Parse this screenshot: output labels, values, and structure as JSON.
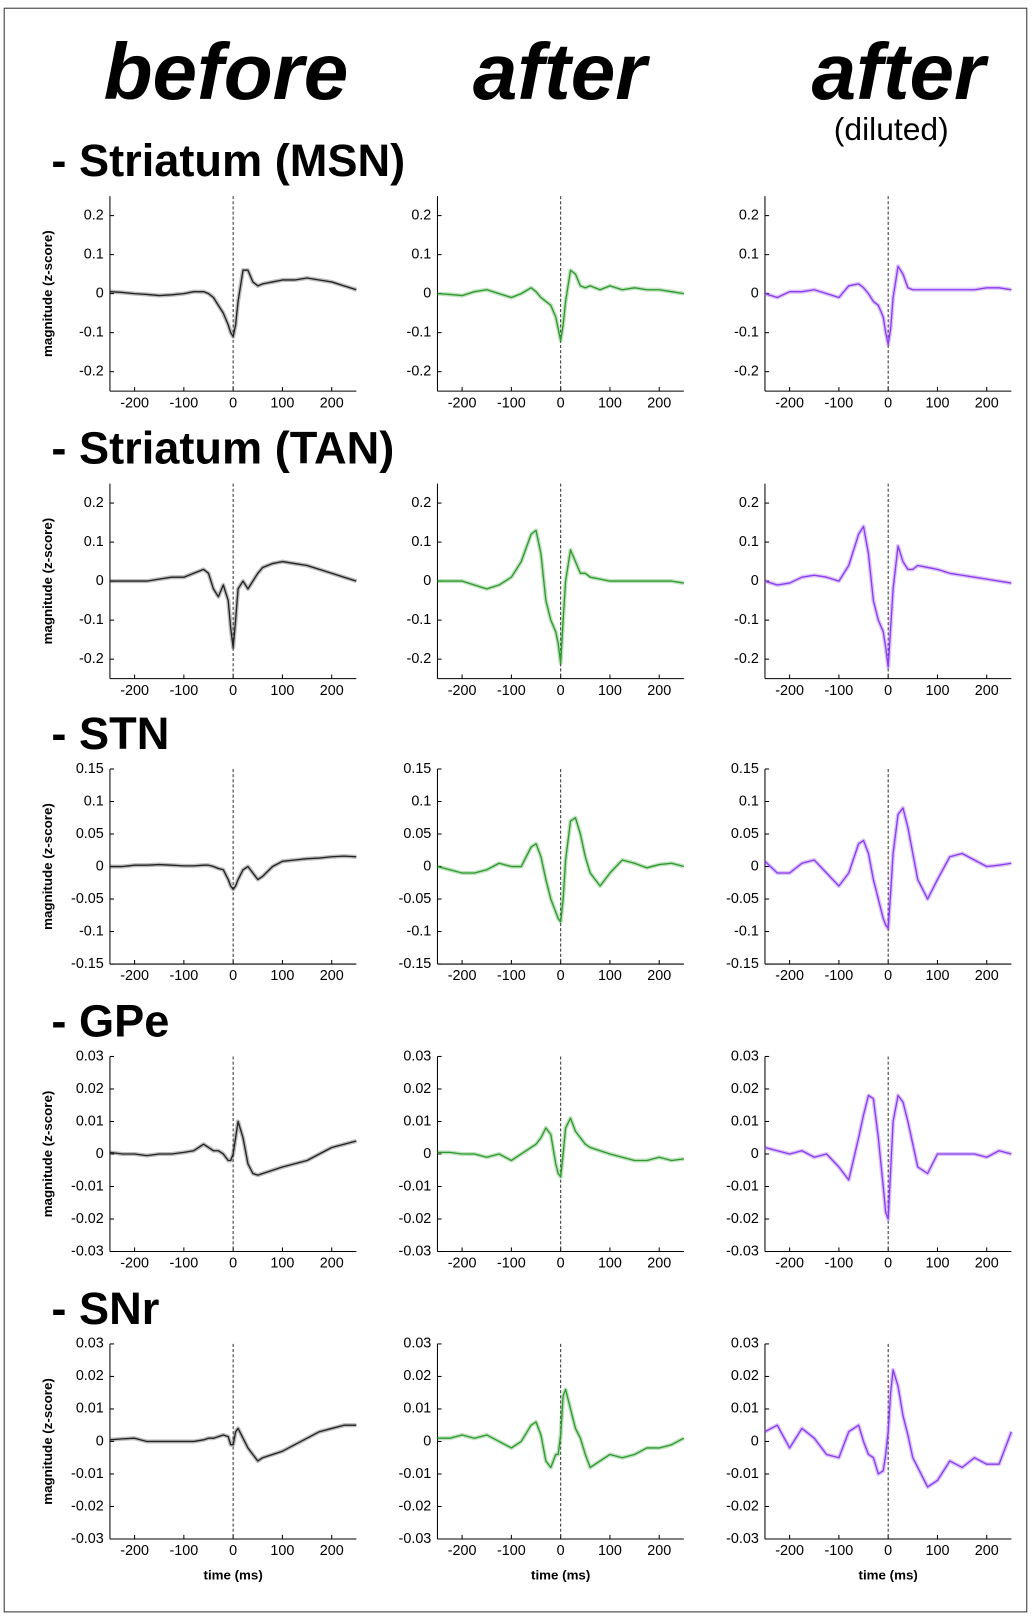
{
  "column_titles": [
    "before",
    "after",
    "after"
  ],
  "column_subtitle": "(diluted)",
  "row_titles": [
    "- Striatum (MSN)",
    "- Striatum (TAN)",
    "- STN",
    "- GPe",
    "- SNr"
  ],
  "chart_data": [
    {
      "type": "line",
      "ylabel": "magnitude (z-score)",
      "color": "#222222",
      "x": [
        -250,
        -225,
        -200,
        -175,
        -150,
        -125,
        -100,
        -80,
        -60,
        -50,
        -40,
        -30,
        -20,
        -10,
        -5,
        0,
        5,
        10,
        20,
        30,
        40,
        50,
        60,
        80,
        100,
        125,
        150,
        175,
        200,
        225,
        250
      ],
      "values": [
        0.005,
        0.003,
        0,
        -0.002,
        -0.005,
        -0.003,
        0,
        0.005,
        0.005,
        0,
        -0.01,
        -0.03,
        -0.05,
        -0.08,
        -0.1,
        -0.11,
        -0.08,
        -0.02,
        0.06,
        0.06,
        0.03,
        0.02,
        0.025,
        0.03,
        0.035,
        0.035,
        0.04,
        0.035,
        0.03,
        0.02,
        0.01
      ],
      "xlim": [
        -250,
        250
      ],
      "xticks": [
        -200,
        -100,
        0,
        100,
        200
      ],
      "ylim": [
        -0.25,
        0.25
      ],
      "yticks": [
        -0.2,
        -0.1,
        0,
        0.1,
        0.2
      ],
      "reference_x": 0
    },
    {
      "type": "line",
      "color": "#2e9a2e",
      "x": [
        -250,
        -225,
        -200,
        -175,
        -150,
        -125,
        -100,
        -80,
        -60,
        -50,
        -40,
        -30,
        -20,
        -10,
        -5,
        0,
        5,
        10,
        20,
        30,
        40,
        50,
        60,
        80,
        100,
        125,
        150,
        175,
        200,
        225,
        250
      ],
      "values": [
        0,
        -0.002,
        -0.005,
        0.005,
        0.01,
        0,
        -0.01,
        0,
        0.015,
        0.005,
        -0.01,
        -0.02,
        -0.03,
        -0.06,
        -0.09,
        -0.12,
        -0.08,
        -0.02,
        0.06,
        0.05,
        0.02,
        0.015,
        0.02,
        0.01,
        0.02,
        0.01,
        0.015,
        0.01,
        0.01,
        0.005,
        0
      ],
      "xlim": [
        -250,
        250
      ],
      "xticks": [
        -200,
        -100,
        0,
        100,
        200
      ],
      "ylim": [
        -0.25,
        0.25
      ],
      "yticks": [
        -0.2,
        -0.1,
        0,
        0.1,
        0.2
      ],
      "reference_x": 0
    },
    {
      "type": "line",
      "color": "#8a3cf0",
      "x": [
        -250,
        -225,
        -200,
        -175,
        -150,
        -125,
        -100,
        -80,
        -60,
        -50,
        -40,
        -30,
        -20,
        -10,
        -5,
        0,
        5,
        10,
        20,
        30,
        40,
        50,
        60,
        80,
        100,
        125,
        150,
        175,
        200,
        225,
        250
      ],
      "values": [
        0,
        -0.01,
        0.005,
        0.005,
        0.01,
        0,
        -0.01,
        0.02,
        0.025,
        0.015,
        0,
        -0.02,
        -0.03,
        -0.06,
        -0.1,
        -0.13,
        -0.09,
        -0.01,
        0.07,
        0.05,
        0.015,
        0.01,
        0.01,
        0.01,
        0.01,
        0.01,
        0.01,
        0.01,
        0.015,
        0.015,
        0.01
      ],
      "xlim": [
        -250,
        250
      ],
      "xticks": [
        -200,
        -100,
        0,
        100,
        200
      ],
      "ylim": [
        -0.25,
        0.25
      ],
      "yticks": [
        -0.2,
        -0.1,
        0,
        0.1,
        0.2
      ],
      "reference_x": 0
    },
    {
      "type": "line",
      "ylabel": "magnitude (z-score)",
      "color": "#222222",
      "x": [
        -250,
        -225,
        -200,
        -175,
        -150,
        -125,
        -100,
        -80,
        -60,
        -50,
        -40,
        -30,
        -20,
        -10,
        -5,
        0,
        5,
        10,
        20,
        30,
        40,
        50,
        60,
        80,
        100,
        125,
        150,
        175,
        200,
        225,
        250
      ],
      "values": [
        0,
        0,
        0,
        0,
        0.005,
        0.01,
        0.01,
        0.02,
        0.03,
        0.02,
        -0.02,
        -0.04,
        -0.01,
        -0.05,
        -0.12,
        -0.17,
        -0.1,
        -0.02,
        0,
        -0.02,
        0,
        0.02,
        0.035,
        0.045,
        0.05,
        0.045,
        0.04,
        0.03,
        0.02,
        0.01,
        0
      ],
      "xlim": [
        -250,
        250
      ],
      "xticks": [
        -200,
        -100,
        0,
        100,
        200
      ],
      "ylim": [
        -0.25,
        0.25
      ],
      "yticks": [
        -0.2,
        -0.1,
        0,
        0.1,
        0.2
      ],
      "reference_x": 0
    },
    {
      "type": "line",
      "color": "#2e9a2e",
      "x": [
        -250,
        -225,
        -200,
        -175,
        -150,
        -125,
        -100,
        -80,
        -60,
        -50,
        -40,
        -30,
        -20,
        -10,
        -5,
        0,
        5,
        10,
        20,
        30,
        40,
        50,
        60,
        80,
        100,
        125,
        150,
        175,
        200,
        225,
        250
      ],
      "values": [
        0,
        0,
        0,
        -0.01,
        -0.02,
        -0.01,
        0.01,
        0.05,
        0.12,
        0.13,
        0.07,
        -0.05,
        -0.1,
        -0.13,
        -0.16,
        -0.21,
        -0.1,
        0,
        0.08,
        0.05,
        0.02,
        0.02,
        0.01,
        0.005,
        0,
        0,
        0,
        0,
        0,
        0,
        -0.005
      ],
      "xlim": [
        -250,
        250
      ],
      "xticks": [
        -200,
        -100,
        0,
        100,
        200
      ],
      "ylim": [
        -0.25,
        0.25
      ],
      "yticks": [
        -0.2,
        -0.1,
        0,
        0.1,
        0.2
      ],
      "reference_x": 0
    },
    {
      "type": "line",
      "color": "#8a3cf0",
      "x": [
        -250,
        -225,
        -200,
        -175,
        -150,
        -125,
        -100,
        -80,
        -60,
        -50,
        -40,
        -30,
        -20,
        -10,
        -5,
        0,
        5,
        10,
        20,
        30,
        40,
        50,
        60,
        80,
        100,
        125,
        150,
        175,
        200,
        225,
        250
      ],
      "values": [
        0,
        -0.01,
        -0.005,
        0.01,
        0.015,
        0.01,
        0,
        0.04,
        0.12,
        0.14,
        0.07,
        -0.05,
        -0.1,
        -0.13,
        -0.17,
        -0.22,
        -0.12,
        -0.02,
        0.09,
        0.05,
        0.03,
        0.03,
        0.04,
        0.035,
        0.03,
        0.02,
        0.015,
        0.01,
        0.005,
        0,
        -0.005
      ],
      "xlim": [
        -250,
        250
      ],
      "xticks": [
        -200,
        -100,
        0,
        100,
        200
      ],
      "ylim": [
        -0.25,
        0.25
      ],
      "yticks": [
        -0.2,
        -0.1,
        0,
        0.1,
        0.2
      ],
      "reference_x": 0
    },
    {
      "type": "line",
      "ylabel": "magnitude (z-score)",
      "color": "#222222",
      "x": [
        -250,
        -225,
        -200,
        -175,
        -150,
        -125,
        -100,
        -80,
        -60,
        -50,
        -40,
        -30,
        -20,
        -10,
        -5,
        0,
        5,
        10,
        20,
        30,
        40,
        50,
        60,
        80,
        100,
        125,
        150,
        175,
        200,
        225,
        250
      ],
      "values": [
        0,
        0,
        0.002,
        0.002,
        0.003,
        0.002,
        0.001,
        0.001,
        0.002,
        0.002,
        0,
        -0.003,
        -0.005,
        -0.02,
        -0.03,
        -0.035,
        -0.03,
        -0.02,
        -0.005,
        0,
        -0.01,
        -0.02,
        -0.015,
        0,
        0.008,
        0.01,
        0.012,
        0.013,
        0.015,
        0.016,
        0.015
      ],
      "xlim": [
        -250,
        250
      ],
      "xticks": [
        -200,
        -100,
        0,
        100,
        200
      ],
      "ylim": [
        -0.15,
        0.15
      ],
      "yticks": [
        -0.15,
        -0.1,
        -0.05,
        0,
        0.05,
        0.1,
        0.15
      ],
      "reference_x": 0
    },
    {
      "type": "line",
      "color": "#2e9a2e",
      "x": [
        -250,
        -225,
        -200,
        -175,
        -150,
        -125,
        -100,
        -80,
        -60,
        -50,
        -40,
        -30,
        -20,
        -10,
        -5,
        0,
        5,
        10,
        20,
        30,
        40,
        50,
        60,
        80,
        100,
        125,
        150,
        175,
        200,
        225,
        250
      ],
      "values": [
        0,
        -0.005,
        -0.01,
        -0.01,
        -0.005,
        0.005,
        0,
        0,
        0.03,
        0.035,
        0.015,
        -0.02,
        -0.05,
        -0.07,
        -0.08,
        -0.085,
        -0.05,
        0.01,
        0.07,
        0.075,
        0.05,
        0.015,
        -0.01,
        -0.03,
        -0.01,
        0.01,
        0.005,
        -0.002,
        0.003,
        0.005,
        0
      ],
      "xlim": [
        -250,
        250
      ],
      "xticks": [
        -200,
        -100,
        0,
        100,
        200
      ],
      "ylim": [
        -0.15,
        0.15
      ],
      "yticks": [
        -0.15,
        -0.1,
        -0.05,
        0,
        0.05,
        0.1,
        0.15
      ],
      "reference_x": 0
    },
    {
      "type": "line",
      "color": "#8a3cf0",
      "x": [
        -250,
        -225,
        -200,
        -175,
        -150,
        -125,
        -100,
        -80,
        -60,
        -50,
        -40,
        -30,
        -20,
        -10,
        -5,
        0,
        5,
        10,
        20,
        30,
        40,
        50,
        60,
        80,
        100,
        125,
        150,
        175,
        200,
        225,
        250
      ],
      "values": [
        0.008,
        -0.01,
        -0.01,
        0.005,
        0.01,
        -0.01,
        -0.03,
        -0.01,
        0.035,
        0.04,
        0.02,
        -0.02,
        -0.05,
        -0.08,
        -0.09,
        -0.095,
        -0.04,
        0.02,
        0.08,
        0.09,
        0.06,
        0.02,
        -0.02,
        -0.05,
        -0.02,
        0.015,
        0.02,
        0.01,
        0,
        0.002,
        0.005
      ],
      "xlim": [
        -250,
        250
      ],
      "xticks": [
        -200,
        -100,
        0,
        100,
        200
      ],
      "ylim": [
        -0.15,
        0.15
      ],
      "yticks": [
        -0.15,
        -0.1,
        -0.05,
        0,
        0.05,
        0.1,
        0.15
      ],
      "reference_x": 0
    },
    {
      "type": "line",
      "ylabel": "magnitude (z-score)",
      "color": "#222222",
      "x": [
        -250,
        -225,
        -200,
        -175,
        -150,
        -125,
        -100,
        -80,
        -60,
        -50,
        -40,
        -30,
        -20,
        -10,
        -5,
        0,
        5,
        10,
        20,
        30,
        40,
        50,
        60,
        80,
        100,
        125,
        150,
        175,
        200,
        225,
        250
      ],
      "values": [
        0.0005,
        0,
        0,
        -0.0005,
        0,
        0,
        0.0005,
        0.001,
        0.003,
        0.002,
        0.001,
        0.001,
        0,
        -0.002,
        -0.002,
        0,
        0.005,
        0.01,
        0.005,
        -0.003,
        -0.006,
        -0.0065,
        -0.006,
        -0.005,
        -0.004,
        -0.003,
        -0.002,
        0,
        0.002,
        0.003,
        0.004
      ],
      "xlim": [
        -250,
        250
      ],
      "xticks": [
        -200,
        -100,
        0,
        100,
        200
      ],
      "ylim": [
        -0.03,
        0.03
      ],
      "yticks": [
        -0.03,
        -0.02,
        -0.01,
        0,
        0.01,
        0.02,
        0.03
      ],
      "reference_x": 0
    },
    {
      "type": "line",
      "color": "#2e9a2e",
      "x": [
        -250,
        -225,
        -200,
        -175,
        -150,
        -125,
        -100,
        -80,
        -60,
        -50,
        -40,
        -30,
        -20,
        -10,
        -5,
        0,
        5,
        10,
        20,
        30,
        40,
        50,
        60,
        80,
        100,
        125,
        150,
        175,
        200,
        225,
        250
      ],
      "values": [
        0.0005,
        0.0005,
        0,
        0,
        -0.001,
        0,
        -0.002,
        0,
        0.002,
        0.003,
        0.005,
        0.008,
        0.006,
        -0.003,
        -0.006,
        -0.007,
        0,
        0.008,
        0.011,
        0.007,
        0.005,
        0.003,
        0.002,
        0.001,
        0,
        -0.001,
        -0.002,
        -0.002,
        -0.001,
        -0.002,
        -0.0015
      ],
      "xlim": [
        -250,
        250
      ],
      "xticks": [
        -200,
        -100,
        0,
        100,
        200
      ],
      "ylim": [
        -0.03,
        0.03
      ],
      "yticks": [
        -0.03,
        -0.02,
        -0.01,
        0,
        0.01,
        0.02,
        0.03
      ],
      "reference_x": 0
    },
    {
      "type": "line",
      "color": "#8a3cf0",
      "x": [
        -250,
        -225,
        -200,
        -175,
        -150,
        -125,
        -100,
        -80,
        -60,
        -50,
        -40,
        -30,
        -20,
        -10,
        -5,
        0,
        5,
        10,
        20,
        30,
        40,
        50,
        60,
        80,
        100,
        125,
        150,
        175,
        200,
        225,
        250
      ],
      "values": [
        0.002,
        0.001,
        0,
        0.001,
        -0.001,
        0,
        -0.004,
        -0.008,
        0.005,
        0.012,
        0.018,
        0.017,
        0.005,
        -0.01,
        -0.018,
        -0.02,
        -0.005,
        0.01,
        0.018,
        0.016,
        0.01,
        0.003,
        -0.004,
        -0.006,
        0,
        0,
        0,
        0,
        -0.001,
        0.001,
        0
      ],
      "xlim": [
        -250,
        250
      ],
      "xticks": [
        -200,
        -100,
        0,
        100,
        200
      ],
      "ylim": [
        -0.03,
        0.03
      ],
      "yticks": [
        -0.03,
        -0.02,
        -0.01,
        0,
        0.01,
        0.02,
        0.03
      ],
      "reference_x": 0
    },
    {
      "type": "line",
      "ylabel": "magnitude (z-score)",
      "xlabel": "time (ms)",
      "color": "#222222",
      "x": [
        -250,
        -225,
        -200,
        -175,
        -150,
        -125,
        -100,
        -80,
        -60,
        -50,
        -40,
        -30,
        -20,
        -10,
        -5,
        0,
        5,
        10,
        20,
        30,
        40,
        50,
        60,
        80,
        100,
        125,
        150,
        175,
        200,
        225,
        250
      ],
      "values": [
        0.0005,
        0.0008,
        0.001,
        0,
        0,
        0,
        0,
        0,
        0.0005,
        0.001,
        0.001,
        0.0015,
        0.002,
        0.0015,
        -0.001,
        -0.001,
        0.003,
        0.004,
        0.001,
        -0.002,
        -0.004,
        -0.006,
        -0.005,
        -0.004,
        -0.003,
        -0.001,
        0.001,
        0.003,
        0.004,
        0.005,
        0.005
      ],
      "xlim": [
        -250,
        250
      ],
      "xticks": [
        -200,
        -100,
        0,
        100,
        200
      ],
      "ylim": [
        -0.03,
        0.03
      ],
      "yticks": [
        -0.03,
        -0.02,
        -0.01,
        0,
        0.01,
        0.02,
        0.03
      ],
      "reference_x": 0
    },
    {
      "type": "line",
      "xlabel": "time (ms)",
      "color": "#2e9a2e",
      "x": [
        -250,
        -225,
        -200,
        -175,
        -150,
        -125,
        -100,
        -80,
        -60,
        -50,
        -40,
        -30,
        -20,
        -10,
        -5,
        0,
        5,
        10,
        20,
        30,
        40,
        50,
        60,
        80,
        100,
        125,
        150,
        175,
        200,
        225,
        250
      ],
      "values": [
        0.001,
        0.001,
        0.002,
        0.001,
        0.002,
        0,
        -0.002,
        0,
        0.005,
        0.006,
        0.002,
        -0.006,
        -0.008,
        -0.004,
        -0.004,
        0.002,
        0.014,
        0.016,
        0.01,
        0.004,
        0.001,
        -0.004,
        -0.008,
        -0.006,
        -0.004,
        -0.005,
        -0.004,
        -0.002,
        -0.002,
        -0.001,
        0.001
      ],
      "xlim": [
        -250,
        250
      ],
      "xticks": [
        -200,
        -100,
        0,
        100,
        200
      ],
      "ylim": [
        -0.03,
        0.03
      ],
      "yticks": [
        -0.03,
        -0.02,
        -0.01,
        0,
        0.01,
        0.02,
        0.03
      ],
      "reference_x": 0
    },
    {
      "type": "line",
      "xlabel": "time (ms)",
      "color": "#8a3cf0",
      "x": [
        -250,
        -225,
        -200,
        -175,
        -150,
        -125,
        -100,
        -80,
        -60,
        -50,
        -40,
        -30,
        -20,
        -10,
        -5,
        0,
        5,
        10,
        20,
        30,
        40,
        50,
        60,
        80,
        100,
        125,
        150,
        175,
        200,
        225,
        250
      ],
      "values": [
        0.003,
        0.005,
        -0.002,
        0.004,
        0.001,
        -0.004,
        -0.005,
        0.003,
        0.005,
        0,
        -0.004,
        -0.005,
        -0.01,
        -0.009,
        -0.004,
        0.003,
        0.015,
        0.022,
        0.017,
        0.008,
        0.002,
        -0.005,
        -0.008,
        -0.014,
        -0.012,
        -0.006,
        -0.008,
        -0.005,
        -0.007,
        -0.007,
        0.003
      ],
      "xlim": [
        -250,
        250
      ],
      "xticks": [
        -200,
        -100,
        0,
        100,
        200
      ],
      "ylim": [
        -0.03,
        0.03
      ],
      "yticks": [
        -0.03,
        -0.02,
        -0.01,
        0,
        0.01,
        0.02,
        0.03
      ],
      "reference_x": 0
    }
  ]
}
